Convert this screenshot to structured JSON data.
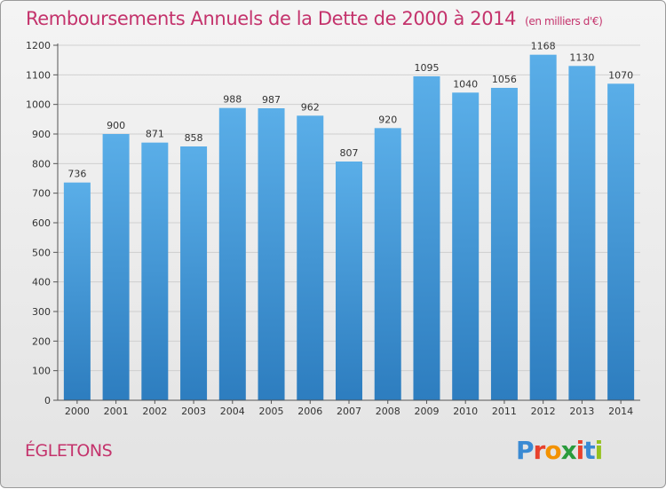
{
  "title": "Remboursements Annuels de la Dette de 2000 à 2014",
  "subtitle": "(en milliers d'€)",
  "commune": "ÉGLETONS",
  "logo": {
    "text": "Proxiti",
    "colors": [
      "#3a8ad3",
      "#e8412c",
      "#f39200",
      "#2a9b3c",
      "#e8412c",
      "#3a8ad3",
      "#95c11f"
    ]
  },
  "colors": {
    "title": "#c4336c",
    "bar_top": "#5aaee8",
    "bar_bottom": "#2d7dbf",
    "grid": "#cfcfcf"
  },
  "chart_data": {
    "type": "bar",
    "title": "Remboursements Annuels de la Dette de 2000 à 2014",
    "xlabel": "",
    "ylabel": "",
    "ylim": [
      0,
      1200
    ],
    "yticks": [
      0,
      100,
      200,
      300,
      400,
      500,
      600,
      700,
      800,
      900,
      1000,
      1100,
      1200
    ],
    "grid": true,
    "categories": [
      "2000",
      "2001",
      "2002",
      "2003",
      "2004",
      "2005",
      "2006",
      "2007",
      "2008",
      "2009",
      "2010",
      "2011",
      "2012",
      "2013",
      "2014"
    ],
    "values": [
      736,
      900,
      871,
      858,
      988,
      987,
      962,
      807,
      920,
      1095,
      1040,
      1056,
      1168,
      1130,
      1070
    ]
  }
}
